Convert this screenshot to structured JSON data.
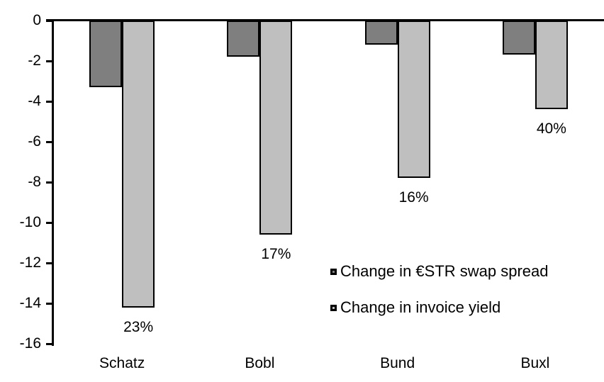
{
  "chart_data": {
    "type": "bar",
    "title": "",
    "categories": [
      "Schatz",
      "Bobl",
      "Bund",
      "Buxl"
    ],
    "series": [
      {
        "name": "Change in €STR swap spread",
        "color": "#7f7f7f",
        "values": [
          -3.3,
          -1.8,
          -1.2,
          -1.7
        ]
      },
      {
        "name": "Change in invoice yield",
        "color": "#bfbfbf",
        "values": [
          -14.2,
          -10.6,
          -7.8,
          -4.4
        ]
      }
    ],
    "bar_labels": {
      "series_name": "Change in invoice yield",
      "values": [
        "23%",
        "17%",
        "16%",
        "40%"
      ]
    },
    "yticks": [
      0,
      -2,
      -4,
      -6,
      -8,
      -10,
      -12,
      -14,
      -16
    ],
    "ytick_labels": [
      "0",
      "-2",
      "-4",
      "-6",
      "-8",
      "-10",
      "-12",
      "-14",
      "-16"
    ],
    "ylim": [
      -16,
      0
    ],
    "xlabel": "",
    "ylabel": "",
    "grid": false,
    "legend_position": "inside-right-middle",
    "axis_color": "#000000",
    "background_color": "#ffffff",
    "bar_border_color": "#000000"
  }
}
